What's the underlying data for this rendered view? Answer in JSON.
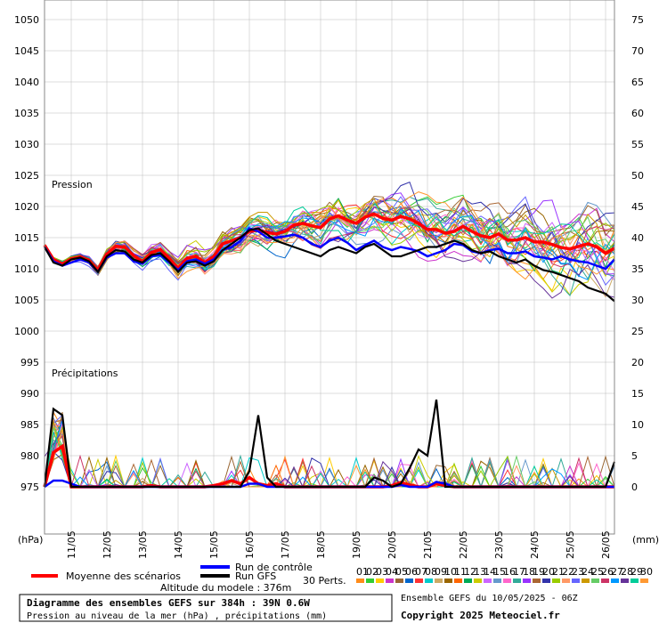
{
  "chart_data": {
    "type": "line",
    "title": "Diagramme des ensembles GEFS sur 384h : 39N 0.6W",
    "subtitle": "Pression au niveau de la mer (hPa) , précipitations (mm)",
    "left_axis": {
      "unit_label": "(hPa)",
      "ticks": [
        1050,
        1045,
        1040,
        1035,
        1030,
        1025,
        1020,
        1015,
        1010,
        1005,
        1000,
        995,
        990,
        985,
        980,
        975
      ],
      "ylim": [
        975,
        1050
      ]
    },
    "right_axis": {
      "unit_label": "(mm)",
      "ticks": [
        75,
        70,
        65,
        60,
        55,
        50,
        45,
        40,
        35,
        30,
        25,
        20,
        15,
        10,
        5,
        0
      ],
      "ylim": [
        0,
        75
      ]
    },
    "x_tick_labels": [
      "11/05",
      "12/05",
      "13/05",
      "14/05",
      "15/05",
      "16/05",
      "17/05",
      "18/05",
      "19/05",
      "20/05",
      "21/05",
      "22/05",
      "23/05",
      "24/05",
      "25/05",
      "26/05"
    ],
    "panel_labels": {
      "pressure": "Pression",
      "precip": "Précipitations"
    },
    "x_hours": [
      0,
      6,
      12,
      18,
      24,
      30,
      36,
      42,
      48,
      54,
      60,
      66,
      72,
      78,
      84,
      90,
      96,
      102,
      108,
      114,
      120,
      126,
      132,
      138,
      144,
      150,
      156,
      162,
      168,
      174,
      180,
      186,
      192,
      198,
      204,
      210,
      216,
      222,
      228,
      234,
      240,
      246,
      252,
      258,
      264,
      270,
      276,
      282,
      288,
      294,
      300,
      306,
      312,
      318,
      324,
      330,
      336,
      342,
      348,
      354,
      360,
      366,
      372,
      378,
      384
    ],
    "series": [
      {
        "name": "Moyenne des scénarios",
        "color": "#ff0000",
        "pressure": [
          1013.8,
          1011.5,
          1010.8,
          1011.6,
          1011.9,
          1011.4,
          1009.8,
          1012.4,
          1013.6,
          1013.5,
          1012.1,
          1011.2,
          1012.6,
          1013.1,
          1011.7,
          1010.1,
          1011.7,
          1012.0,
          1011.0,
          1012.0,
          1014.0,
          1014.5,
          1015.0,
          1016.0,
          1016.2,
          1015.8,
          1015.6,
          1016.0,
          1017.0,
          1017.3,
          1016.9,
          1016.6,
          1018.0,
          1018.5,
          1017.8,
          1017.3,
          1018.3,
          1018.8,
          1018.1,
          1017.8,
          1018.4,
          1018.0,
          1017.3,
          1016.3,
          1016.3,
          1015.7,
          1016.0,
          1016.8,
          1016.0,
          1015.3,
          1015.0,
          1015.6,
          1014.6,
          1014.6,
          1015.0,
          1014.3,
          1014.3,
          1013.9,
          1013.4,
          1013.2,
          1013.6,
          1014.0,
          1013.5,
          1012.5,
          1013.3
        ],
        "precip": [
          0,
          5.5,
          6.5,
          0,
          0,
          0,
          0,
          0,
          0,
          0,
          0,
          0,
          0.2,
          0,
          0,
          0,
          0,
          0,
          0,
          0.2,
          0.5,
          1.0,
          0.5,
          1.5,
          0.5,
          0.2,
          0.5,
          0,
          0,
          0,
          0,
          0,
          0,
          0,
          0,
          0,
          0,
          0,
          0,
          0.2,
          0.7,
          0.3,
          0,
          0,
          0.5,
          0.2,
          0,
          0,
          0,
          0,
          0,
          0,
          0,
          0,
          0,
          0,
          0,
          0,
          0,
          0,
          0,
          0,
          0,
          0,
          0
        ]
      },
      {
        "name": "Run de contrôle",
        "color": "#0000ff",
        "pressure": [
          1013.5,
          1011.2,
          1010.5,
          1011.0,
          1011.5,
          1011.0,
          1009.5,
          1011.8,
          1012.5,
          1012.5,
          1011.2,
          1010.8,
          1012.0,
          1012.2,
          1011.0,
          1009.8,
          1011.2,
          1011.5,
          1010.8,
          1011.5,
          1013.0,
          1013.5,
          1014.5,
          1016.5,
          1016.0,
          1015.0,
          1015.0,
          1015.2,
          1015.5,
          1015.0,
          1014.0,
          1013.5,
          1014.5,
          1015.0,
          1014.2,
          1013.0,
          1013.8,
          1014.5,
          1013.5,
          1013.0,
          1013.5,
          1013.2,
          1012.8,
          1012.0,
          1012.5,
          1013.0,
          1014.0,
          1013.8,
          1012.8,
          1012.5,
          1013.0,
          1013.2,
          1012.5,
          1012.5,
          1012.8,
          1012.0,
          1011.8,
          1011.5,
          1012.0,
          1011.5,
          1011.2,
          1011.0,
          1010.5,
          1010.0,
          1011.5
        ],
        "precip": [
          0,
          1.0,
          1.0,
          0.5,
          0,
          0,
          0,
          0,
          0,
          0,
          0,
          0,
          0,
          0,
          0,
          0,
          0,
          0,
          0,
          0,
          0,
          0,
          0,
          0.5,
          0.5,
          0,
          0,
          0,
          0,
          0,
          0,
          0,
          0,
          0,
          0,
          0,
          0,
          0,
          0,
          0,
          0.3,
          0,
          0,
          0,
          0.8,
          0.5,
          0,
          0,
          0,
          0,
          0,
          0,
          0,
          0,
          0,
          0,
          0,
          0,
          0,
          0,
          0,
          0,
          0,
          0,
          0
        ]
      },
      {
        "name": "Run GFS",
        "color": "#000000",
        "pressure": [
          1013.5,
          1011.0,
          1010.5,
          1011.5,
          1011.8,
          1011.2,
          1009.5,
          1012.0,
          1013.0,
          1012.8,
          1011.5,
          1011.0,
          1012.2,
          1012.5,
          1011.2,
          1009.5,
          1011.0,
          1011.2,
          1010.5,
          1011.2,
          1013.0,
          1014.0,
          1015.0,
          1016.2,
          1016.5,
          1015.5,
          1014.5,
          1014.0,
          1013.5,
          1013.0,
          1012.5,
          1012.0,
          1013.0,
          1013.5,
          1013.0,
          1012.5,
          1013.5,
          1014.0,
          1013.0,
          1012.0,
          1012.0,
          1012.5,
          1013.0,
          1013.5,
          1013.5,
          1014.0,
          1014.5,
          1014.0,
          1013.0,
          1012.5,
          1012.8,
          1012.0,
          1011.5,
          1011.0,
          1011.5,
          1010.5,
          1009.8,
          1009.5,
          1009.0,
          1008.5,
          1008.0,
          1007.0,
          1006.5,
          1006.0,
          1004.8
        ],
        "precip": [
          0,
          12.5,
          11.5,
          0,
          0,
          0,
          0,
          0,
          0,
          0,
          0,
          0,
          0,
          0,
          0,
          0,
          0,
          0,
          0,
          0,
          0,
          0,
          0,
          2.5,
          11.5,
          1.5,
          0,
          0,
          0,
          0,
          0,
          0,
          0,
          0,
          0,
          0,
          0,
          1.5,
          1.0,
          0,
          0.5,
          3.0,
          6.0,
          5.0,
          14.0,
          0,
          0,
          0,
          0,
          0,
          0,
          0,
          0,
          0,
          0,
          0,
          0,
          0,
          0,
          0,
          0,
          0,
          0,
          0,
          4.0
        ]
      }
    ],
    "perturbations_label": "30 Perts.",
    "perturbation_ids": [
      "01",
      "02",
      "03",
      "04",
      "05",
      "06",
      "07",
      "08",
      "09",
      "10",
      "11",
      "12",
      "13",
      "14",
      "15",
      "16",
      "17",
      "18",
      "19",
      "20",
      "21",
      "22",
      "23",
      "24",
      "25",
      "26",
      "27",
      "28",
      "29",
      "30"
    ],
    "perturbation_colors": [
      "#ff8c1a",
      "#33cc33",
      "#ffcc00",
      "#cc33cc",
      "#996633",
      "#0066cc",
      "#ff3333",
      "#00cccc",
      "#ccaa66",
      "#996600",
      "#ff6600",
      "#00aa55",
      "#cccc00",
      "#cc66ff",
      "#6699cc",
      "#ff66cc",
      "#33aa99",
      "#9933ff",
      "#aa6633",
      "#3333aa",
      "#99cc00",
      "#ff9966",
      "#6666ff",
      "#cc9900",
      "#66cc66",
      "#cc3366",
      "#0099ff",
      "#663399",
      "#00cc99",
      "#ff9933"
    ],
    "legend_placement": "bottom"
  },
  "footer": {
    "altitude": "Altitude du modele : 376m",
    "ensemble_date": "Ensemble GEFS du 10/05/2025 - 06Z",
    "copyright": "Copyright 2025 Meteociel.fr"
  }
}
